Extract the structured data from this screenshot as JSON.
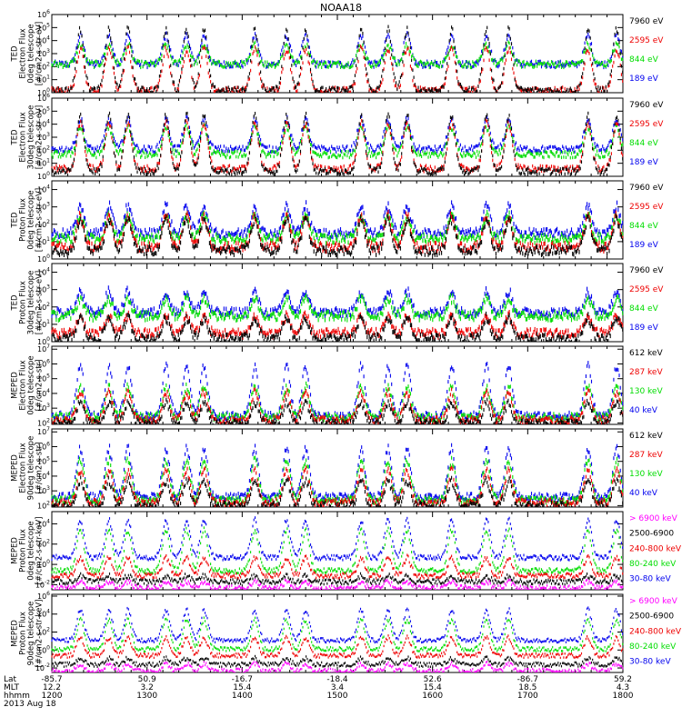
{
  "title": "NOAA18",
  "colors": {
    "black": "#000000",
    "red": "#ee0000",
    "green": "#00dd00",
    "blue": "#0000ee",
    "magenta": "#ff00ff"
  },
  "chart_data": [
    {
      "type": "scatter",
      "ylabel": [
        "TED",
        "Electron Flux",
        "0deg telescope",
        "[#/cm2-s-str-eV]"
      ],
      "ylim_log10": [
        0,
        6
      ],
      "yticks": [
        0,
        1,
        2,
        3,
        4,
        5,
        6
      ],
      "legend": [
        {
          "name": "7960 eV",
          "color": "black"
        },
        {
          "name": "2595 eV",
          "color": "red"
        },
        {
          "name": "844 eV",
          "color": "green"
        },
        {
          "name": "189 eV",
          "color": "blue"
        }
      ],
      "baseline": [
        0.3,
        0.3,
        2.3,
        2.3
      ],
      "peaks_utc": [
        1218,
        1236,
        1248,
        1312,
        1325,
        1336,
        1408,
        1428,
        1440,
        1515,
        1532,
        1544,
        1612,
        1634,
        1648,
        1738,
        1756
      ],
      "peak_max": [
        5.0,
        3.5,
        3.8,
        4.5
      ]
    },
    {
      "type": "scatter",
      "ylabel": [
        "TED",
        "Electron Flux",
        "30deg telescope",
        "[#/cm2-s-str-eV]"
      ],
      "ylim_log10": [
        0,
        6
      ],
      "yticks": [
        0,
        1,
        2,
        3,
        4,
        5,
        6
      ],
      "legend": [
        {
          "name": "7960 eV",
          "color": "black"
        },
        {
          "name": "2595 eV",
          "color": "red"
        },
        {
          "name": "844 eV",
          "color": "green"
        },
        {
          "name": "189 eV",
          "color": "blue"
        }
      ],
      "baseline": [
        0.5,
        0.7,
        1.8,
        2.2
      ],
      "peaks_utc": [
        1218,
        1236,
        1248,
        1312,
        1325,
        1336,
        1408,
        1428,
        1440,
        1515,
        1532,
        1544,
        1612,
        1634,
        1648,
        1738,
        1756
      ],
      "peak_max": [
        4.8,
        4.2,
        3.9,
        4.5
      ]
    },
    {
      "type": "scatter",
      "ylabel": [
        "TED",
        "Proton Flux",
        "0deg telescope",
        "[#/cm2-s-str-eV]"
      ],
      "ylim_log10": [
        0,
        4.5
      ],
      "yticks": [
        0,
        1,
        2,
        3,
        4
      ],
      "legend": [
        {
          "name": "7960 eV",
          "color": "black"
        },
        {
          "name": "2595 eV",
          "color": "red"
        },
        {
          "name": "844 eV",
          "color": "green"
        },
        {
          "name": "189 eV",
          "color": "blue"
        }
      ],
      "baseline": [
        0.6,
        0.8,
        1.3,
        1.6
      ],
      "peaks_utc": [
        1218,
        1236,
        1248,
        1312,
        1325,
        1336,
        1408,
        1428,
        1440,
        1515,
        1532,
        1544,
        1612,
        1634,
        1648,
        1738,
        1756
      ],
      "peak_max": [
        2.4,
        2.6,
        2.6,
        3.2
      ]
    },
    {
      "type": "scatter",
      "ylabel": [
        "TED",
        "Proton Flux",
        "30deg telescope",
        "[#/cm2-s-str-eV]"
      ],
      "ylim_log10": [
        0,
        4.5
      ],
      "yticks": [
        0,
        1,
        2,
        3,
        4
      ],
      "legend": [
        {
          "name": "7960 eV",
          "color": "black"
        },
        {
          "name": "2595 eV",
          "color": "red"
        },
        {
          "name": "844 eV",
          "color": "green"
        },
        {
          "name": "189 eV",
          "color": "blue"
        }
      ],
      "baseline": [
        0.3,
        0.6,
        1.6,
        1.8
      ],
      "peaks_utc": [
        1218,
        1236,
        1248,
        1312,
        1325,
        1336,
        1408,
        1428,
        1440,
        1515,
        1532,
        1544,
        1612,
        1634,
        1648,
        1738,
        1756
      ],
      "peak_max": [
        1.5,
        1.6,
        2.6,
        3.0
      ]
    },
    {
      "type": "scatter",
      "ylabel": [
        "MEPED",
        "Electron Flux",
        "0deg telescope",
        "[#/cm2-s-str]"
      ],
      "ylim_log10": [
        1.9,
        7.2
      ],
      "yticks": [
        2,
        3,
        4,
        5,
        6,
        7
      ],
      "legend": [
        {
          "name": "612 keV",
          "color": "black"
        },
        {
          "name": "287 keV",
          "color": "red"
        },
        {
          "name": "130 keV",
          "color": "green"
        },
        {
          "name": "40 keV",
          "color": "blue"
        }
      ],
      "baseline": [
        2.1,
        2.3,
        2.5,
        2.6
      ],
      "peaks_utc": [
        1218,
        1236,
        1248,
        1312,
        1325,
        1336,
        1408,
        1428,
        1440,
        1515,
        1532,
        1544,
        1612,
        1634,
        1648,
        1738,
        1756
      ],
      "peak_max": [
        3.5,
        4.2,
        4.6,
        6.0
      ]
    },
    {
      "type": "scatter",
      "ylabel": [
        "MEPED",
        "Electron Flux",
        "90deg telescope",
        "[#/cm2-s-str]"
      ],
      "ylim_log10": [
        1.9,
        7.2
      ],
      "yticks": [
        2,
        3,
        4,
        5,
        6,
        7
      ],
      "legend": [
        {
          "name": "612 keV",
          "color": "black"
        },
        {
          "name": "287 keV",
          "color": "red"
        },
        {
          "name": "130 keV",
          "color": "green"
        },
        {
          "name": "40 keV",
          "color": "blue"
        }
      ],
      "baseline": [
        2.1,
        2.3,
        2.5,
        2.7
      ],
      "peaks_utc": [
        1218,
        1236,
        1248,
        1312,
        1325,
        1336,
        1408,
        1428,
        1440,
        1515,
        1532,
        1544,
        1612,
        1634,
        1648,
        1738,
        1756
      ],
      "peak_max": [
        3.8,
        4.5,
        5.2,
        6.0
      ]
    },
    {
      "type": "scatter",
      "ylabel": [
        "MEPED",
        "Proton Flux",
        "0deg telescope",
        "[#/cm2-s-str-keV]"
      ],
      "ylim_log10": [
        -2.5,
        5.2
      ],
      "yticks": [
        -2,
        0,
        2,
        4
      ],
      "legend": [
        {
          "name": "> 6900 keV",
          "color": "magenta"
        },
        {
          "name": "2500-6900",
          "color": "black"
        },
        {
          "name": "240-800 keV",
          "color": "red"
        },
        {
          "name": "80-240 keV",
          "color": "green"
        },
        {
          "name": "30-80 keV",
          "color": "blue"
        }
      ],
      "baseline": [
        -2.2,
        -1.6,
        -1.0,
        -0.5,
        0.8
      ],
      "peaks_utc": [
        1218,
        1236,
        1248,
        1312,
        1325,
        1336,
        1408,
        1428,
        1440,
        1515,
        1532,
        1544,
        1612,
        1634,
        1648,
        1738,
        1756
      ],
      "peak_max": [
        -1.6,
        -1.0,
        0.8,
        3.5,
        4.5
      ]
    },
    {
      "type": "scatter",
      "ylabel": [
        "MEPED",
        "Proton Flux",
        "90deg telescope",
        "[#/cm2-s-str-keV]"
      ],
      "ylim_log10": [
        -2.5,
        6.2
      ],
      "yticks": [
        -2,
        0,
        2,
        4,
        6
      ],
      "legend": [
        {
          "name": "> 6900 keV",
          "color": "magenta"
        },
        {
          "name": "2500-6900",
          "color": "black"
        },
        {
          "name": "240-800 keV",
          "color": "red"
        },
        {
          "name": "80-240 keV",
          "color": "green"
        },
        {
          "name": "30-80 keV",
          "color": "blue"
        }
      ],
      "baseline": [
        -2.2,
        -1.5,
        -0.5,
        0.2,
        1.2
      ],
      "peaks_utc": [
        1218,
        1236,
        1248,
        1312,
        1325,
        1336,
        1408,
        1428,
        1440,
        1515,
        1532,
        1544,
        1612,
        1634,
        1648,
        1738,
        1756
      ],
      "peak_max": [
        -1.4,
        -0.8,
        1.5,
        3.5,
        4.6
      ]
    }
  ],
  "xaxis": {
    "row_labels": [
      "Lat",
      "MLT",
      "hhmm"
    ],
    "date": "2013 Aug 18",
    "time_range_hhmm": [
      1200,
      1800
    ],
    "ticks": [
      {
        "lat": "-85.7",
        "mlt": "12.2",
        "hhmm": "1200"
      },
      {
        "lat": "50.9",
        "mlt": "3.2",
        "hhmm": "1300"
      },
      {
        "lat": "-16.7",
        "mlt": "15.4",
        "hhmm": "1400"
      },
      {
        "lat": "-18.4",
        "mlt": "3.4",
        "hhmm": "1500"
      },
      {
        "lat": "52.6",
        "mlt": "15.4",
        "hhmm": "1600"
      },
      {
        "lat": "-86.7",
        "mlt": "18.5",
        "hhmm": "1700"
      },
      {
        "lat": "59.2",
        "mlt": "4.3",
        "hhmm": "1800"
      }
    ]
  }
}
